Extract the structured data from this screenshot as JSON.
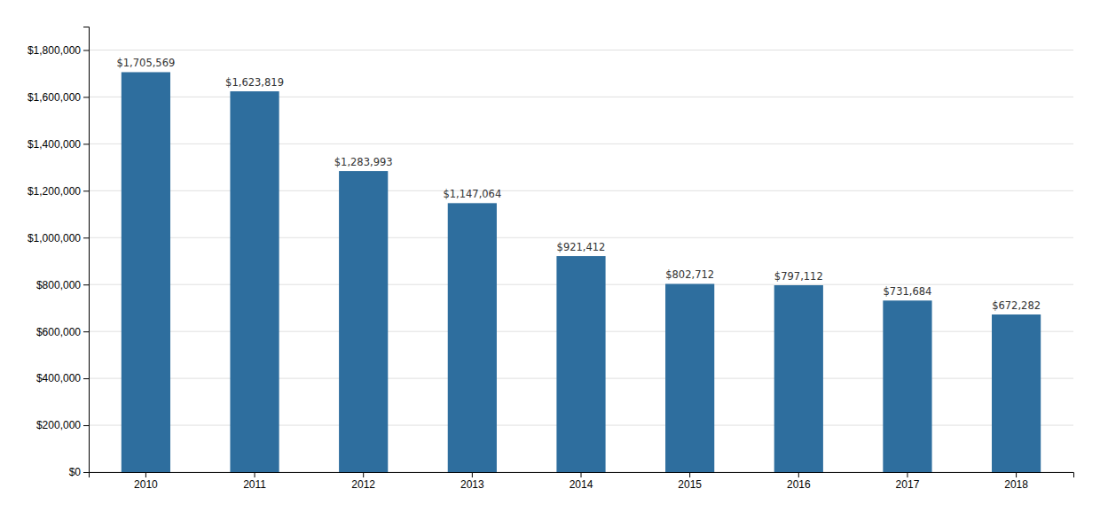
{
  "chart_data": {
    "type": "bar",
    "categories": [
      "2010",
      "2011",
      "2012",
      "2013",
      "2014",
      "2015",
      "2016",
      "2017",
      "2018"
    ],
    "values": [
      1705569,
      1623819,
      1283993,
      1147064,
      921412,
      802712,
      797112,
      731684,
      672282
    ],
    "value_labels": [
      "$1,705,569",
      "$1,623,819",
      "$1,283,993",
      "$1,147,064",
      "$921,412",
      "$802,712",
      "$797,112",
      "$731,684",
      "$672,282"
    ],
    "data_labels": true,
    "color": "#2E6E9E",
    "ylim": [
      0,
      1900000
    ],
    "yticks": [
      {
        "value": 0,
        "label": "$0"
      },
      {
        "value": 200000,
        "label": "$200,000"
      },
      {
        "value": 400000,
        "label": "$400,000"
      },
      {
        "value": 600000,
        "label": "$600,000"
      },
      {
        "value": 800000,
        "label": "$800,000"
      },
      {
        "value": 1000000,
        "label": "$1,000,000"
      },
      {
        "value": 1200000,
        "label": "$1,200,000"
      },
      {
        "value": 1400000,
        "label": "$1,400,000"
      },
      {
        "value": 1600000,
        "label": "$1,600,000"
      },
      {
        "value": 1800000,
        "label": "$1,800,000"
      }
    ],
    "grid": true
  }
}
